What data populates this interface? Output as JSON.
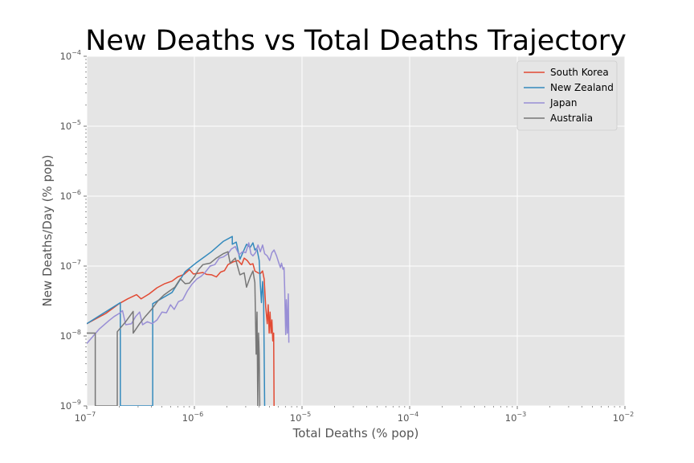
{
  "chart_data": {
    "type": "line",
    "title": "New Deaths vs Total Deaths Trajectory",
    "xlabel": "Total Deaths (% pop)",
    "ylabel": "New Deaths/Day (% pop)",
    "xscale": "log",
    "yscale": "log",
    "xlim": [
      1e-07,
      0.01
    ],
    "ylim": [
      1e-09,
      0.0001
    ],
    "xticks": [
      {
        "base": "10",
        "exp": "−7"
      },
      {
        "base": "10",
        "exp": "−6"
      },
      {
        "base": "10",
        "exp": "−5"
      },
      {
        "base": "10",
        "exp": "−4"
      },
      {
        "base": "10",
        "exp": "−3"
      },
      {
        "base": "10",
        "exp": "−2"
      }
    ],
    "yticks": [
      {
        "base": "10",
        "exp": "−9"
      },
      {
        "base": "10",
        "exp": "−8"
      },
      {
        "base": "10",
        "exp": "−7"
      },
      {
        "base": "10",
        "exp": "−6"
      },
      {
        "base": "10",
        "exp": "−5"
      },
      {
        "base": "10",
        "exp": "−4"
      }
    ],
    "grid": true,
    "legend_position": "top-right",
    "background": "#e5e5e5",
    "series": [
      {
        "name": "South Korea",
        "color": "#e24a33",
        "points": [
          [
            1e-07,
            1.5e-08
          ],
          [
            1.5e-07,
            2.1e-08
          ],
          [
            2e-07,
            2.9e-08
          ],
          [
            2.4e-07,
            3.4e-08
          ],
          [
            2.9e-07,
            3.9e-08
          ],
          [
            3.2e-07,
            3.4e-08
          ],
          [
            3.8e-07,
            4e-08
          ],
          [
            4.5e-07,
            4.9e-08
          ],
          [
            5.3e-07,
            5.6e-08
          ],
          [
            6.2e-07,
            6.1e-08
          ],
          [
            7e-07,
            7e-08
          ],
          [
            8e-07,
            7.6e-08
          ],
          [
            9e-07,
            8.9e-08
          ],
          [
            9.8e-07,
            7.7e-08
          ],
          [
            1.1e-06,
            7.9e-08
          ],
          [
            1.2e-06,
            8.1e-08
          ],
          [
            1.3e-06,
            7.6e-08
          ],
          [
            1.45e-06,
            7.5e-08
          ],
          [
            1.6e-06,
            7e-08
          ],
          [
            1.75e-06,
            8.2e-08
          ],
          [
            1.9e-06,
            8.6e-08
          ],
          [
            2.05e-06,
            1.05e-07
          ],
          [
            2.3e-06,
            1.15e-07
          ],
          [
            2.55e-06,
            1.2e-07
          ],
          [
            2.75e-06,
            1.05e-07
          ],
          [
            2.9e-06,
            1.3e-07
          ],
          [
            3.1e-06,
            1.2e-07
          ],
          [
            3.3e-06,
            1.05e-07
          ],
          [
            3.5e-06,
            1.08e-07
          ],
          [
            3.65e-06,
            8.5e-08
          ],
          [
            3.9e-06,
            8e-08
          ],
          [
            4.1e-06,
            7.8e-08
          ],
          [
            4.3e-06,
            8.5e-08
          ],
          [
            4.45e-06,
            6.5e-08
          ],
          [
            4.6e-06,
            2.6e-08
          ],
          [
            4.75e-06,
            1.5e-08
          ],
          [
            4.85e-06,
            2.8e-08
          ],
          [
            4.95e-06,
            1.1e-08
          ],
          [
            5.05e-06,
            2.2e-08
          ],
          [
            5.15e-06,
            1.1e-08
          ],
          [
            5.25e-06,
            1.7e-08
          ],
          [
            5.35e-06,
            8.5e-09
          ],
          [
            5.45e-06,
            1.1e-08
          ],
          [
            5.5e-06,
            1e-09
          ]
        ]
      },
      {
        "name": "New Zealand",
        "color": "#348abd",
        "points": [
          [
            1e-07,
            1.5e-08
          ],
          [
            2.05e-07,
            3e-08
          ],
          [
            2.05e-07,
            1e-09
          ],
          [
            4.1e-07,
            1e-09
          ],
          [
            4.1e-07,
            2.9e-08
          ],
          [
            6.2e-07,
            4.2e-08
          ],
          [
            8.2e-07,
            8.3e-08
          ],
          [
            1.03e-06,
            1.1e-07
          ],
          [
            1.44e-06,
            1.6e-07
          ],
          [
            1.85e-06,
            2.25e-07
          ],
          [
            2.25e-06,
            2.65e-07
          ],
          [
            2.25e-06,
            2.05e-07
          ],
          [
            2.45e-06,
            2.2e-07
          ],
          [
            2.65e-06,
            1.25e-07
          ],
          [
            3.05e-06,
            2.05e-07
          ],
          [
            3.3e-06,
            1.85e-07
          ],
          [
            3.5e-06,
            2.15e-07
          ],
          [
            3.65e-06,
            1.7e-07
          ],
          [
            3.8e-06,
            1.8e-07
          ],
          [
            4e-06,
            1.2e-07
          ],
          [
            4.1e-06,
            5.5e-08
          ],
          [
            4.2e-06,
            3e-08
          ],
          [
            4.3e-06,
            6e-08
          ],
          [
            4.4e-06,
            3.5e-08
          ],
          [
            4.5e-06,
            1e-09
          ]
        ]
      },
      {
        "name": "Japan",
        "color": "#988ed5",
        "points": [
          [
            1e-07,
            7.8e-09
          ],
          [
            1.3e-07,
            1.25e-08
          ],
          [
            1.6e-07,
            1.65e-08
          ],
          [
            1.8e-07,
            1.9e-08
          ],
          [
            2e-07,
            2.1e-08
          ],
          [
            2.15e-07,
            2.3e-08
          ],
          [
            2.3e-07,
            1.45e-08
          ],
          [
            2.6e-07,
            1.5e-08
          ],
          [
            2.85e-07,
            1.9e-08
          ],
          [
            3.1e-07,
            2.2e-08
          ],
          [
            3.3e-07,
            1.45e-08
          ],
          [
            3.65e-07,
            1.6e-08
          ],
          [
            4.05e-07,
            1.5e-08
          ],
          [
            4.5e-07,
            1.7e-08
          ],
          [
            5e-07,
            2.2e-08
          ],
          [
            5.5e-07,
            2.15e-08
          ],
          [
            6e-07,
            2.8e-08
          ],
          [
            6.5e-07,
            2.4e-08
          ],
          [
            7.1e-07,
            3.1e-08
          ],
          [
            7.8e-07,
            3.3e-08
          ],
          [
            8.6e-07,
            4.4e-08
          ],
          [
            9.5e-07,
            5.5e-08
          ],
          [
            1.05e-06,
            6.5e-08
          ],
          [
            1.15e-06,
            7.1e-08
          ],
          [
            1.25e-06,
            8e-08
          ],
          [
            1.4e-06,
            1e-07
          ],
          [
            1.55e-06,
            1.05e-07
          ],
          [
            1.7e-06,
            1.3e-07
          ],
          [
            1.85e-06,
            1.35e-07
          ],
          [
            2.05e-06,
            1.5e-07
          ],
          [
            2.2e-06,
            1.75e-07
          ],
          [
            2.4e-06,
            1.9e-07
          ],
          [
            2.6e-06,
            1.45e-07
          ],
          [
            2.8e-06,
            1.6e-07
          ],
          [
            3e-06,
            1.55e-07
          ],
          [
            3.2e-06,
            2.15e-07
          ],
          [
            3.35e-06,
            1.5e-07
          ],
          [
            3.5e-06,
            1.4e-07
          ],
          [
            3.7e-06,
            1.55e-07
          ],
          [
            3.9e-06,
            2e-07
          ],
          [
            4.1e-06,
            1.6e-07
          ],
          [
            4.3e-06,
            2e-07
          ],
          [
            4.5e-06,
            1.5e-07
          ],
          [
            4.75e-06,
            1.4e-07
          ],
          [
            5e-06,
            1.2e-07
          ],
          [
            5.25e-06,
            1.55e-07
          ],
          [
            5.5e-06,
            1.7e-07
          ],
          [
            5.8e-06,
            1.4e-07
          ],
          [
            6.1e-06,
            1.1e-07
          ],
          [
            6.3e-06,
            9.5e-08
          ],
          [
            6.45e-06,
            1.1e-07
          ],
          [
            6.65e-06,
            9e-08
          ],
          [
            6.8e-06,
            9.5e-08
          ],
          [
            6.9e-06,
            4.8e-08
          ],
          [
            7.05e-06,
            1.05e-08
          ],
          [
            7.15e-06,
            3.3e-08
          ],
          [
            7.3e-06,
            1.1e-08
          ],
          [
            7.45e-06,
            4e-08
          ],
          [
            7.55e-06,
            8e-09
          ]
        ]
      },
      {
        "name": "Australia",
        "color": "#777777",
        "points": [
          [
            1e-07,
            1.1e-08
          ],
          [
            1.2e-07,
            1.1e-08
          ],
          [
            1.2e-07,
            1e-09
          ],
          [
            1.92e-07,
            1e-09
          ],
          [
            1.92e-07,
            1.15e-08
          ],
          [
            2.3e-07,
            1.6e-08
          ],
          [
            2.7e-07,
            2.25e-08
          ],
          [
            2.7e-07,
            1.1e-08
          ],
          [
            3.1e-07,
            1.5e-08
          ],
          [
            3.5e-07,
            1.9e-08
          ],
          [
            4e-07,
            2.4e-08
          ],
          [
            4.6e-07,
            3.2e-08
          ],
          [
            5.2e-07,
            3.85e-08
          ],
          [
            5.8e-07,
            4.35e-08
          ],
          [
            6.6e-07,
            5e-08
          ],
          [
            7.4e-07,
            6.6e-08
          ],
          [
            8.2e-07,
            5.6e-08
          ],
          [
            9e-07,
            5.7e-08
          ],
          [
            1e-06,
            7e-08
          ],
          [
            1.1e-06,
            9e-08
          ],
          [
            1.2e-06,
            1.05e-07
          ],
          [
            1.4e-06,
            1.1e-07
          ],
          [
            1.6e-06,
            1.3e-07
          ],
          [
            1.85e-06,
            1.5e-07
          ],
          [
            2.05e-06,
            1.6e-07
          ],
          [
            2.15e-06,
            1.1e-07
          ],
          [
            2.4e-06,
            1.3e-07
          ],
          [
            2.65e-06,
            7.5e-08
          ],
          [
            2.9e-06,
            8e-08
          ],
          [
            3.05e-06,
            5e-08
          ],
          [
            3.3e-06,
            7e-08
          ],
          [
            3.5e-06,
            8.5e-08
          ],
          [
            3.65e-06,
            5.8e-08
          ],
          [
            3.75e-06,
            5.5e-09
          ],
          [
            3.82e-06,
            2.2e-08
          ],
          [
            3.88e-06,
            1e-09
          ],
          [
            3.95e-06,
            1.1e-08
          ],
          [
            4e-06,
            5.5e-09
          ],
          [
            4.05e-06,
            1e-09
          ]
        ]
      }
    ]
  }
}
